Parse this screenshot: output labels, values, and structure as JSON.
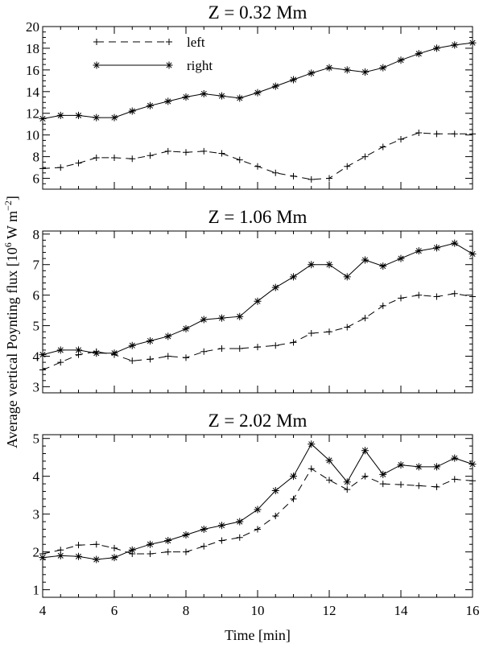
{
  "chart_data": {
    "type": "line",
    "ylabel": "Average vertical Poynting flux [10^6 W m^-2]",
    "xlabel": "Time [min]",
    "xlim": [
      4,
      16
    ],
    "xticks": [
      4,
      6,
      8,
      10,
      12,
      14,
      16
    ],
    "legend": {
      "position": "top-left",
      "entries": [
        "left",
        "right"
      ]
    },
    "x": [
      4,
      4.5,
      5,
      5.5,
      6,
      6.5,
      7,
      7.5,
      8,
      8.5,
      9,
      9.5,
      10,
      10.5,
      11,
      11.5,
      12,
      12.5,
      13,
      13.5,
      14,
      14.5,
      15,
      15.5,
      16
    ],
    "panels": [
      {
        "title": "Z = 0.32 Mm",
        "ylim": [
          5,
          20
        ],
        "yticks": [
          6,
          8,
          10,
          12,
          14,
          16,
          18,
          20
        ],
        "series": [
          {
            "name": "left",
            "style": "dashed",
            "marker": "plus",
            "values": [
              6.9,
              7.0,
              7.4,
              7.9,
              7.9,
              7.8,
              8.1,
              8.5,
              8.4,
              8.5,
              8.3,
              7.7,
              7.1,
              6.5,
              6.2,
              5.9,
              6.0,
              7.1,
              8.0,
              8.9,
              9.6,
              10.2,
              10.1,
              10.1,
              10.1
            ]
          },
          {
            "name": "right",
            "style": "solid",
            "marker": "asterisk",
            "values": [
              11.5,
              11.8,
              11.8,
              11.6,
              11.6,
              12.2,
              12.7,
              13.1,
              13.5,
              13.8,
              13.6,
              13.4,
              13.9,
              14.5,
              15.1,
              15.7,
              16.2,
              16.0,
              15.8,
              16.2,
              16.9,
              17.5,
              18.0,
              18.3,
              18.5
            ]
          }
        ]
      },
      {
        "title": "Z = 1.06 Mm",
        "ylim": [
          2.8,
          8.1
        ],
        "yticks": [
          3,
          4,
          5,
          6,
          7,
          8
        ],
        "series": [
          {
            "name": "left",
            "style": "dashed",
            "marker": "plus",
            "values": [
              3.55,
              3.8,
              4.05,
              4.15,
              4.05,
              3.85,
              3.9,
              4.0,
              3.95,
              4.15,
              4.25,
              4.25,
              4.3,
              4.35,
              4.45,
              4.75,
              4.8,
              4.95,
              5.25,
              5.65,
              5.9,
              6.0,
              5.95,
              6.05,
              5.95
            ]
          },
          {
            "name": "right",
            "style": "solid",
            "marker": "asterisk",
            "values": [
              4.05,
              4.2,
              4.2,
              4.1,
              4.1,
              4.35,
              4.5,
              4.65,
              4.9,
              5.2,
              5.25,
              5.3,
              5.8,
              6.25,
              6.6,
              7.0,
              7.0,
              6.6,
              7.15,
              6.95,
              7.2,
              7.45,
              7.55,
              7.7,
              7.35
            ]
          }
        ]
      },
      {
        "title": "Z = 2.02 Mm",
        "ylim": [
          0.8,
          5.1
        ],
        "yticks": [
          1,
          2,
          3,
          4,
          5
        ],
        "series": [
          {
            "name": "left",
            "style": "dashed",
            "marker": "plus",
            "values": [
              1.95,
              2.05,
              2.18,
              2.2,
              2.1,
              1.95,
              1.95,
              2.0,
              2.0,
              2.15,
              2.3,
              2.38,
              2.6,
              2.95,
              3.4,
              4.2,
              3.9,
              3.65,
              4.0,
              3.8,
              3.78,
              3.75,
              3.72,
              3.92,
              3.88
            ]
          },
          {
            "name": "right",
            "style": "solid",
            "marker": "asterisk",
            "values": [
              1.85,
              1.9,
              1.88,
              1.8,
              1.85,
              2.05,
              2.2,
              2.3,
              2.45,
              2.6,
              2.7,
              2.8,
              3.12,
              3.62,
              4.0,
              4.85,
              4.42,
              3.85,
              4.68,
              4.05,
              4.3,
              4.25,
              4.25,
              4.48,
              4.32
            ]
          }
        ]
      }
    ]
  }
}
